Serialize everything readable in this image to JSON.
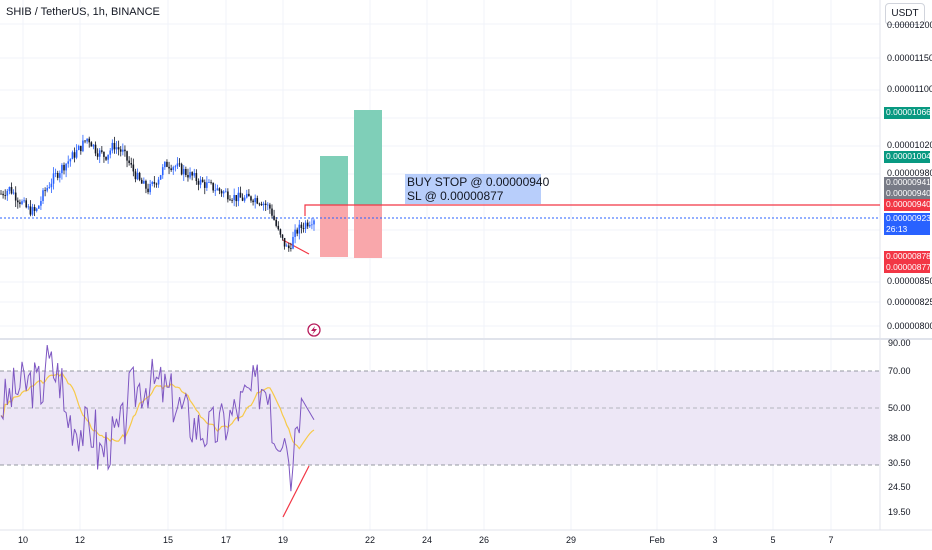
{
  "header": {
    "symbol_title": "SHIB / TetherUS, 1h, BINANCE",
    "currency_button": "USDT"
  },
  "price_axis": {
    "ticks": [
      "0.00001200",
      "0.00001150",
      "0.00001100",
      "0.00001020",
      "0.00000980",
      "0.00000850",
      "0.00000825",
      "0.00000800"
    ]
  },
  "price_tags": {
    "tp2": "0.00001066",
    "tp1": "0.00001004",
    "high": "0.00000941",
    "close": "0.00000940",
    "buy_stop": "0.00000940",
    "last_price": "0.00000923",
    "countdown": "26:13",
    "sl1": "0.00000878",
    "sl2": "0.00000877"
  },
  "rsi_axis": {
    "ticks": [
      "90.00",
      "70.00",
      "50.00",
      "38.00",
      "30.50",
      "24.50",
      "19.50"
    ]
  },
  "time_axis": {
    "ticks": [
      "10",
      "12",
      "15",
      "17",
      "19",
      "22",
      "24",
      "26",
      "29",
      "Feb",
      "3",
      "5",
      "7"
    ]
  },
  "annotation": {
    "line1": "BUY STOP @ 0.00000940",
    "line2": "SL @ 0.00000877"
  },
  "colors": {
    "green_tag": "#089981",
    "red_tag": "#f23645",
    "gray_tag": "#787b86",
    "blue_tag": "#2962ff",
    "tp_zone": "#7fcfb8",
    "sl_zone": "#f9a7ab",
    "rsi_line": "#7e57c2",
    "rsi_ma": "#f7c948",
    "rsi_band": "#ede7f6"
  },
  "icons": {
    "indicator_icon": "lightning-bolt-icon"
  },
  "chart_data": {
    "type": "candlestick",
    "title": "SHIB / TetherUS, 1h, BINANCE",
    "close_series": [
      9.55e-06,
      9.62e-06,
      9.48e-06,
      9.35e-06,
      9.3e-06,
      9.58e-06,
      9.75e-06,
      9.9e-06,
      1.002e-05,
      1.015e-05,
      1.03e-05,
      1.012e-05,
      1.005e-05,
      1.02e-05,
      1.01e-05,
      9.9e-06,
      9.7e-06,
      9.6e-06,
      9.75e-06,
      9.95e-06,
      9.92e-06,
      9.85e-06,
      9.78e-06,
      9.7e-06,
      9.65e-06,
      9.6e-06,
      9.55e-06,
      9.5e-06,
      9.48e-06,
      9.5e-06,
      9.45e-06,
      9.35e-06,
      9e-06,
      8.8e-06,
      9.05e-06,
      9.15e-06,
      9.23e-06
    ],
    "buy_stop": 9.4e-06,
    "stop_loss": 8.77e-06,
    "targets": [
      1.004e-05,
      1.066e-05
    ],
    "rsi_levels": [
      70,
      50,
      30.5
    ],
    "x_ticks": [
      "10",
      "12",
      "15",
      "17",
      "19",
      "22",
      "24",
      "26",
      "29",
      "Feb",
      "3",
      "5",
      "7"
    ]
  }
}
